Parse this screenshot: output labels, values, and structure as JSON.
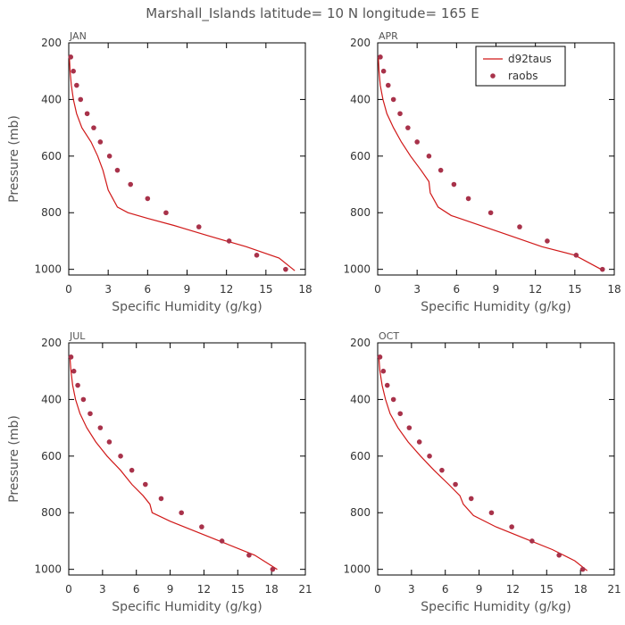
{
  "figure": {
    "title": "Marshall_Islands  latitude= 10 N longitude= 165 E",
    "colors": {
      "model_line": "#d01818",
      "obs_marker": "#a8324a",
      "frame": "#000000",
      "text": "#555555"
    }
  },
  "chart_data": [
    {
      "type": "line",
      "panel": "JAN",
      "xlabel": "Specific Humidity (g/kg)",
      "ylabel": "Pressure (mb)",
      "xlim": [
        0,
        18
      ],
      "ylim": [
        200,
        1020
      ],
      "y_reversed": true,
      "xticks": [
        0,
        3,
        6,
        9,
        12,
        15,
        18
      ],
      "yticks": [
        200,
        400,
        600,
        800,
        1000
      ],
      "legend": null,
      "series": [
        {
          "name": "d92taus",
          "style": "line",
          "x": [
            0.05,
            0.1,
            0.2,
            0.35,
            0.6,
            1.0,
            1.7,
            2.2,
            2.6,
            3.0,
            3.7,
            4.5,
            6.0,
            8.0,
            10.5,
            13.5,
            16.0,
            17.2
          ],
          "y": [
            250,
            300,
            350,
            400,
            450,
            500,
            550,
            600,
            650,
            720,
            780,
            800,
            820,
            845,
            880,
            920,
            960,
            1005
          ]
        },
        {
          "name": "raobs",
          "style": "markers",
          "x": [
            0.15,
            0.35,
            0.6,
            0.9,
            1.4,
            1.9,
            2.4,
            3.1,
            3.7,
            4.7,
            6.0,
            7.4,
            9.9,
            12.2,
            14.3,
            16.5
          ],
          "y": [
            250,
            300,
            350,
            400,
            450,
            500,
            550,
            600,
            650,
            700,
            750,
            800,
            850,
            900,
            950,
            1000
          ]
        }
      ]
    },
    {
      "type": "line",
      "panel": "APR",
      "xlabel": "Specific Humidity (g/kg)",
      "ylabel": "",
      "xlim": [
        0,
        18
      ],
      "ylim": [
        200,
        1020
      ],
      "y_reversed": true,
      "xticks": [
        0,
        3,
        6,
        9,
        12,
        15,
        18
      ],
      "yticks": [
        200,
        400,
        600,
        800,
        1000
      ],
      "legend": {
        "position": "top-right",
        "entries": [
          "d92taus",
          "raobs"
        ]
      },
      "series": [
        {
          "name": "d92taus",
          "style": "line",
          "x": [
            0.05,
            0.1,
            0.2,
            0.4,
            0.7,
            1.2,
            1.8,
            2.5,
            3.3,
            3.9,
            4.0,
            4.6,
            5.6,
            7.5,
            10.0,
            12.5,
            15.0,
            17.0
          ],
          "y": [
            250,
            300,
            350,
            400,
            450,
            500,
            550,
            600,
            650,
            690,
            730,
            780,
            810,
            840,
            880,
            920,
            950,
            1000
          ]
        },
        {
          "name": "raobs",
          "style": "markers",
          "x": [
            0.2,
            0.45,
            0.8,
            1.2,
            1.7,
            2.3,
            3.0,
            3.9,
            4.8,
            5.8,
            6.9,
            8.6,
            10.8,
            12.9,
            15.1,
            17.1
          ],
          "y": [
            250,
            300,
            350,
            400,
            450,
            500,
            550,
            600,
            650,
            700,
            750,
            800,
            850,
            900,
            950,
            1000
          ]
        }
      ]
    },
    {
      "type": "line",
      "panel": "JUL",
      "xlabel": "Specific Humidity (g/kg)",
      "ylabel": "Pressure (mb)",
      "xlim": [
        0,
        21
      ],
      "ylim": [
        200,
        1020
      ],
      "y_reversed": true,
      "xticks": [
        0,
        3,
        6,
        9,
        12,
        15,
        18,
        21
      ],
      "yticks": [
        200,
        400,
        600,
        800,
        1000
      ],
      "legend": null,
      "series": [
        {
          "name": "d92taus",
          "style": "line",
          "x": [
            0.1,
            0.2,
            0.35,
            0.6,
            1.0,
            1.6,
            2.4,
            3.4,
            4.6,
            5.6,
            6.6,
            7.2,
            7.4,
            9.0,
            11.5,
            14.0,
            16.5,
            18.5
          ],
          "y": [
            250,
            300,
            350,
            400,
            450,
            500,
            550,
            600,
            650,
            700,
            740,
            770,
            800,
            830,
            870,
            910,
            950,
            1000
          ]
        },
        {
          "name": "raobs",
          "style": "markers",
          "x": [
            0.2,
            0.45,
            0.8,
            1.3,
            1.9,
            2.8,
            3.6,
            4.6,
            5.6,
            6.8,
            8.2,
            10.0,
            11.8,
            13.6,
            16.0,
            18.1
          ],
          "y": [
            250,
            300,
            350,
            400,
            450,
            500,
            550,
            600,
            650,
            700,
            750,
            800,
            850,
            900,
            950,
            1000
          ]
        }
      ]
    },
    {
      "type": "line",
      "panel": "OCT",
      "xlabel": "Specific Humidity (g/kg)",
      "ylabel": "",
      "xlim": [
        0,
        21
      ],
      "ylim": [
        200,
        1020
      ],
      "y_reversed": true,
      "xticks": [
        0,
        3,
        6,
        9,
        12,
        15,
        18,
        21
      ],
      "yticks": [
        200,
        400,
        600,
        800,
        1000
      ],
      "legend": null,
      "series": [
        {
          "name": "d92taus",
          "style": "line",
          "x": [
            0.1,
            0.2,
            0.4,
            0.7,
            1.1,
            1.8,
            2.7,
            3.8,
            5.0,
            6.3,
            7.3,
            7.6,
            8.5,
            10.5,
            13.0,
            15.5,
            17.5,
            18.6
          ],
          "y": [
            250,
            300,
            350,
            400,
            450,
            500,
            550,
            600,
            650,
            700,
            740,
            770,
            810,
            850,
            890,
            930,
            970,
            1005
          ]
        },
        {
          "name": "raobs",
          "style": "markers",
          "x": [
            0.2,
            0.5,
            0.85,
            1.4,
            2.0,
            2.8,
            3.7,
            4.6,
            5.7,
            6.9,
            8.3,
            10.1,
            11.9,
            13.7,
            16.1,
            18.2
          ],
          "y": [
            250,
            300,
            350,
            400,
            450,
            500,
            550,
            600,
            650,
            700,
            750,
            800,
            850,
            900,
            950,
            1000
          ]
        }
      ]
    }
  ]
}
